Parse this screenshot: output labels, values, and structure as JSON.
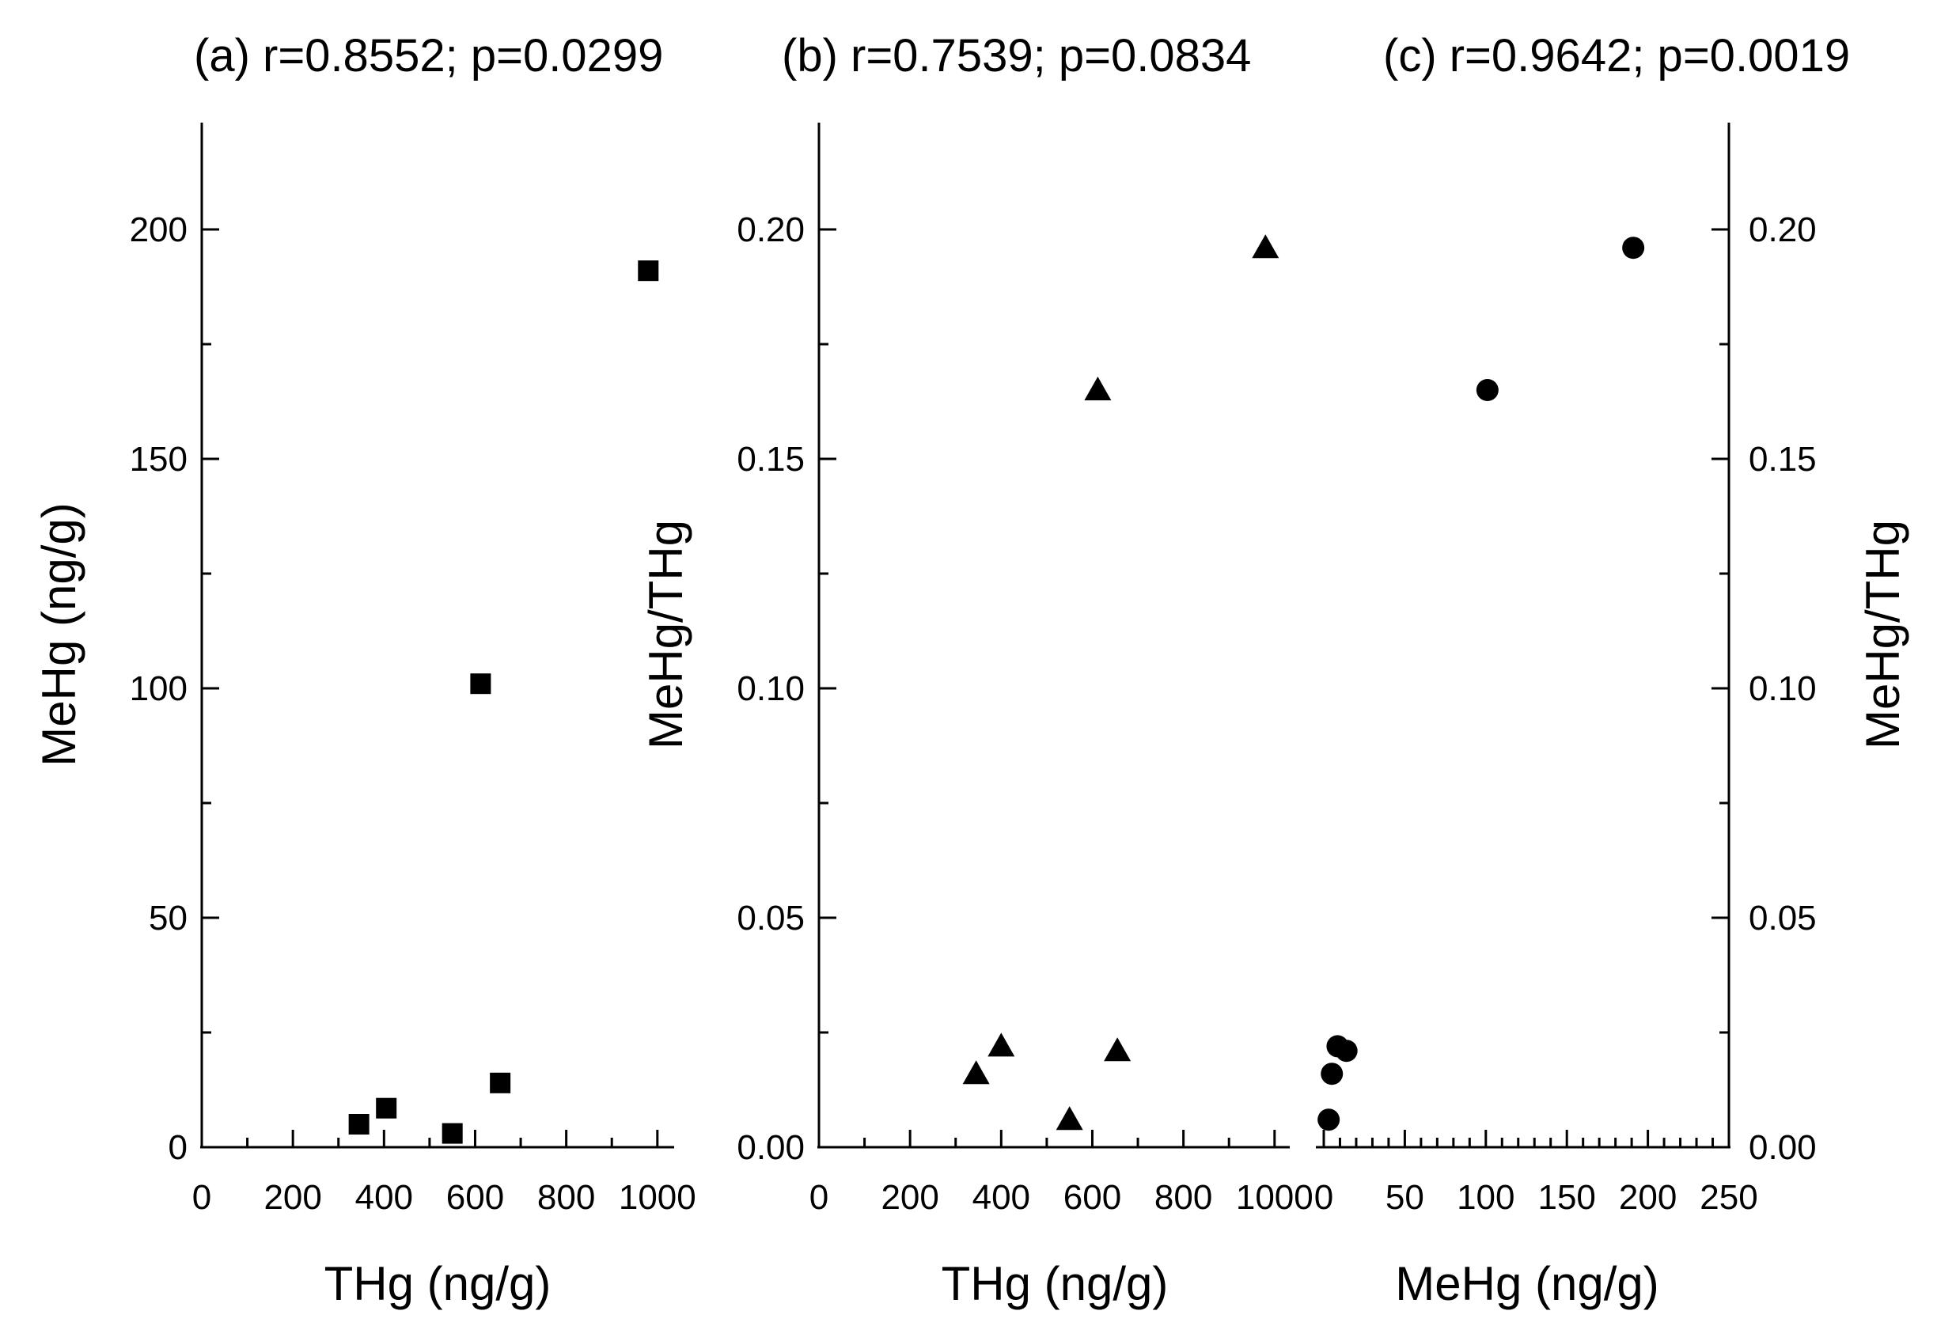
{
  "chart_data": [
    {
      "type": "scatter",
      "id": "a",
      "title": "(a) r=0.8552; p=0.0299",
      "xlabel": "THg (ng/g)",
      "ylabel": "MeHg (ng/g)",
      "xlim": [
        0,
        1100
      ],
      "ylim": [
        0,
        225
      ],
      "xticks": [
        "0",
        "200",
        "400",
        "600",
        "800",
        "1000"
      ],
      "yticks": [
        "0",
        "50",
        "100",
        "150",
        "200"
      ],
      "marker": "square",
      "x": [
        345,
        405,
        550,
        612,
        655,
        980
      ],
      "y": [
        5,
        8.5,
        3,
        101,
        14,
        191
      ]
    },
    {
      "type": "scatter",
      "id": "b",
      "title": "(b) r=0.7539; p=0.0834",
      "xlabel": "THg (ng/g)",
      "ylabel": "MeHg/THg",
      "xlim": [
        0,
        1100
      ],
      "ylim": [
        0,
        0.225
      ],
      "xticks": [
        "0",
        "200",
        "400",
        "600",
        "800",
        "1000"
      ],
      "yticks": [
        "0.00",
        "0.05",
        "0.10",
        "0.15",
        "0.20"
      ],
      "marker": "triangle",
      "x": [
        345,
        400,
        550,
        612,
        655,
        980
      ],
      "y": [
        0.016,
        0.022,
        0.006,
        0.165,
        0.021,
        0.196
      ]
    },
    {
      "type": "scatter",
      "id": "c",
      "title": "(c) r=0.9642; p=0.0019",
      "xlabel": "MeHg (ng/g)",
      "ylabel": "MeHg/THg",
      "xlim": [
        0,
        250
      ],
      "ylim": [
        0,
        0.225
      ],
      "xticks": [
        "0",
        "50",
        "100",
        "150",
        "200",
        "250"
      ],
      "yticks": [
        "0.00",
        "0.05",
        "0.10",
        "0.15",
        "0.20"
      ],
      "marker": "circle",
      "x": [
        3,
        5,
        8.5,
        14,
        101,
        191
      ],
      "y": [
        0.006,
        0.016,
        0.022,
        0.021,
        0.165,
        0.196
      ]
    }
  ]
}
